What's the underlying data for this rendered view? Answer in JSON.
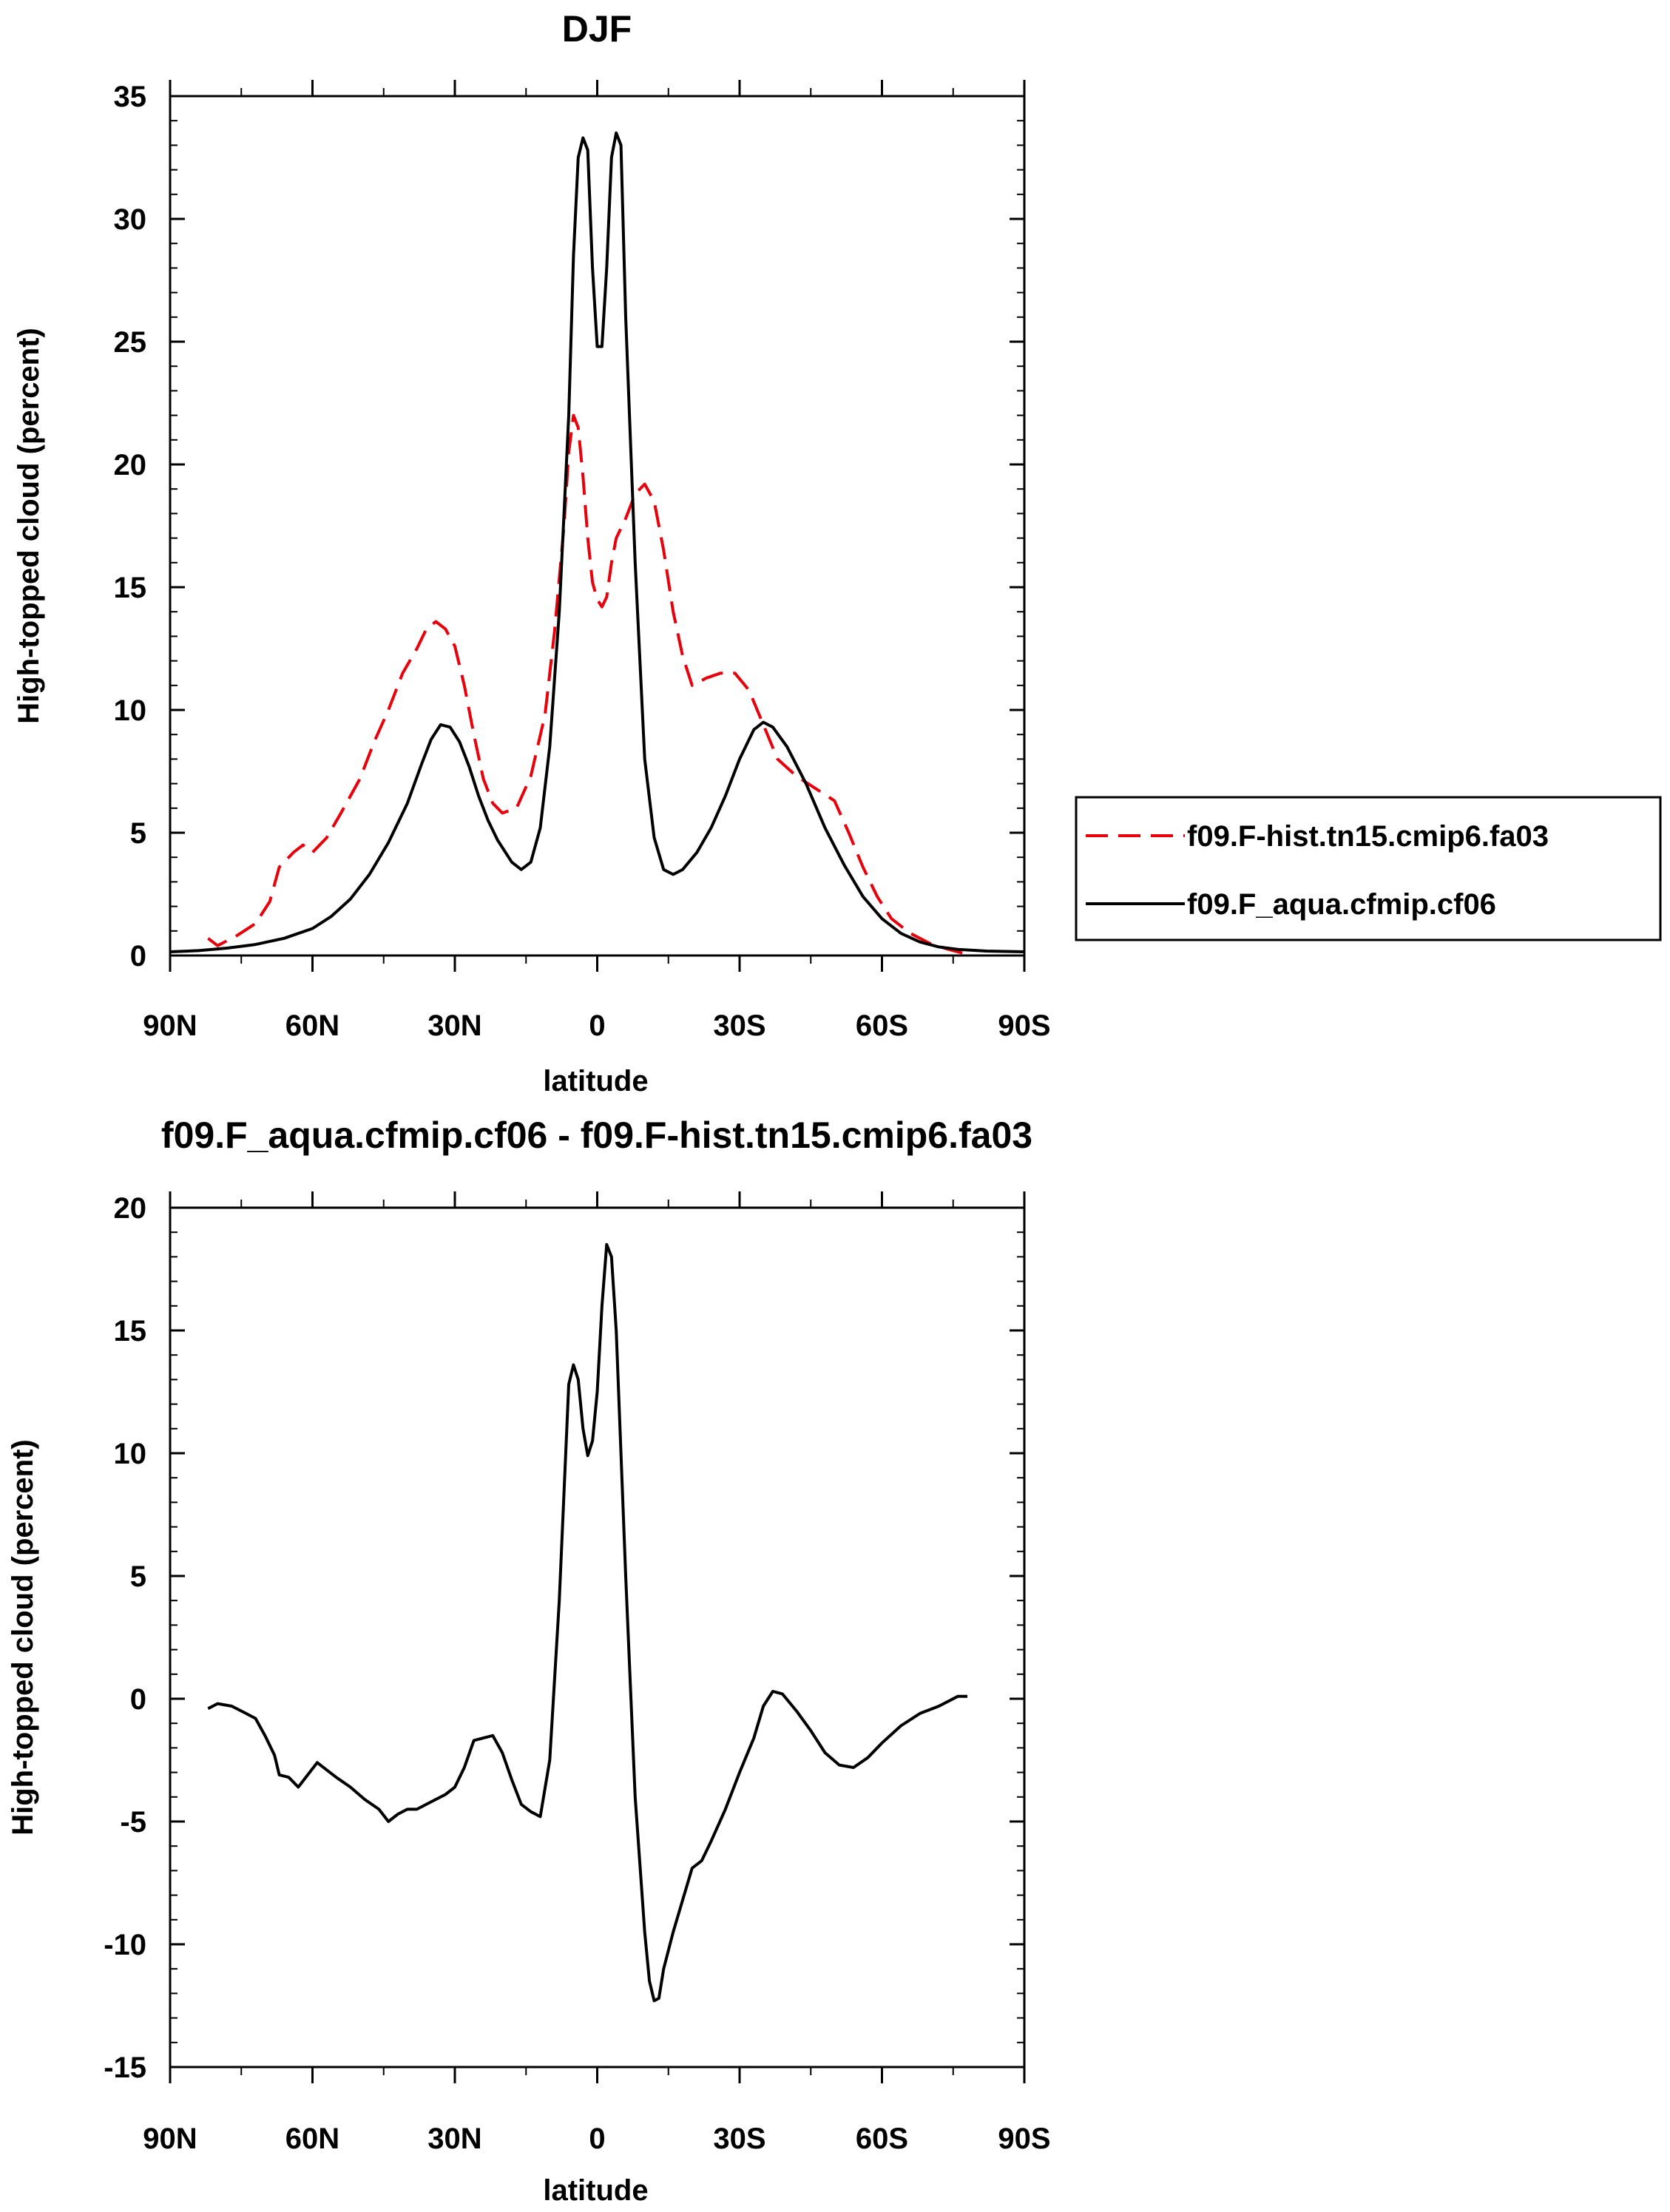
{
  "chart_data": [
    {
      "type": "line",
      "title": "DJF",
      "xlabel": "latitude",
      "ylabel": "High-topped cloud (percent)",
      "xlim": [
        -90,
        90
      ],
      "ylim": [
        0,
        35
      ],
      "y_major_ticks": [
        0,
        5,
        10,
        15,
        20,
        25,
        30,
        35
      ],
      "y_tick_labels": [
        "0",
        "5",
        "10",
        "15",
        "20",
        "25",
        "30",
        "35"
      ],
      "x_major_ticks": [
        -90,
        -60,
        -30,
        0,
        30,
        60,
        90
      ],
      "x_tick_labels": [
        "90N",
        "60N",
        "30N",
        "0",
        "30S",
        "60S",
        "90S"
      ],
      "x_axis_note": "x values are latitude in degrees; negative = N (left), positive = S (right)",
      "legend": {
        "placement": "outside-right",
        "entries": [
          "f09.F-hist.tn15.cmip6.fa03",
          "f09.F_aqua.cfmip.cf06"
        ]
      },
      "series": [
        {
          "name": "f09.F-hist.tn15.cmip6.fa03",
          "color": "#e8000b",
          "dash": "dashed",
          "points": [
            [
              -82,
              0.7
            ],
            [
              -80,
              0.4
            ],
            [
              -76,
              0.8
            ],
            [
              -72,
              1.3
            ],
            [
              -69,
              2.2
            ],
            [
              -67,
              3.6
            ],
            [
              -64,
              4.2
            ],
            [
              -62,
              4.5
            ],
            [
              -60,
              4.2
            ],
            [
              -57,
              4.8
            ],
            [
              -54,
              5.8
            ],
            [
              -50,
              7.2
            ],
            [
              -47,
              8.7
            ],
            [
              -44,
              10.0
            ],
            [
              -41,
              11.5
            ],
            [
              -38,
              12.5
            ],
            [
              -36,
              13.3
            ],
            [
              -34,
              13.6
            ],
            [
              -32,
              13.3
            ],
            [
              -30,
              12.6
            ],
            [
              -28,
              11.0
            ],
            [
              -26,
              9.0
            ],
            [
              -24,
              7.2
            ],
            [
              -22,
              6.2
            ],
            [
              -20,
              5.8
            ],
            [
              -17,
              6.0
            ],
            [
              -14,
              7.3
            ],
            [
              -11,
              9.8
            ],
            [
              -9,
              13.2
            ],
            [
              -7,
              17.5
            ],
            [
              -6,
              20.5
            ],
            [
              -5,
              22.0
            ],
            [
              -4,
              21.5
            ],
            [
              -3,
              19.5
            ],
            [
              -2,
              17.0
            ],
            [
              -1,
              15.2
            ],
            [
              0,
              14.5
            ],
            [
              1,
              14.2
            ],
            [
              2,
              14.6
            ],
            [
              3,
              16.0
            ],
            [
              4,
              17.0
            ],
            [
              6,
              17.8
            ],
            [
              8,
              18.8
            ],
            [
              10,
              19.2
            ],
            [
              12,
              18.5
            ],
            [
              14,
              16.5
            ],
            [
              16,
              14.0
            ],
            [
              18,
              12.2
            ],
            [
              20,
              11.0
            ],
            [
              23,
              11.3
            ],
            [
              26,
              11.5
            ],
            [
              29,
              11.5
            ],
            [
              32,
              10.8
            ],
            [
              35,
              9.4
            ],
            [
              38,
              8.0
            ],
            [
              42,
              7.3
            ],
            [
              46,
              6.8
            ],
            [
              50,
              6.3
            ],
            [
              53,
              5.0
            ],
            [
              56,
              3.6
            ],
            [
              59,
              2.4
            ],
            [
              62,
              1.5
            ],
            [
              66,
              0.9
            ],
            [
              70,
              0.5
            ],
            [
              74,
              0.25
            ],
            [
              77,
              0.1
            ]
          ]
        },
        {
          "name": "f09.F_aqua.cfmip.cf06",
          "color": "#000000",
          "dash": "solid",
          "points": [
            [
              -90,
              0.15
            ],
            [
              -84,
              0.2
            ],
            [
              -78,
              0.3
            ],
            [
              -72,
              0.45
            ],
            [
              -66,
              0.7
            ],
            [
              -60,
              1.1
            ],
            [
              -56,
              1.6
            ],
            [
              -52,
              2.3
            ],
            [
              -48,
              3.3
            ],
            [
              -44,
              4.6
            ],
            [
              -40,
              6.2
            ],
            [
              -37,
              7.8
            ],
            [
              -35,
              8.8
            ],
            [
              -33,
              9.4
            ],
            [
              -31,
              9.3
            ],
            [
              -29,
              8.7
            ],
            [
              -27,
              7.7
            ],
            [
              -25,
              6.5
            ],
            [
              -23,
              5.5
            ],
            [
              -21,
              4.7
            ],
            [
              -18,
              3.8
            ],
            [
              -16,
              3.5
            ],
            [
              -14,
              3.8
            ],
            [
              -12,
              5.2
            ],
            [
              -10,
              8.5
            ],
            [
              -8,
              14.0
            ],
            [
              -6,
              22.0
            ],
            [
              -5,
              28.5
            ],
            [
              -4,
              32.5
            ],
            [
              -3,
              33.3
            ],
            [
              -2,
              32.8
            ],
            [
              -1,
              28.0
            ],
            [
              0,
              24.8
            ],
            [
              1,
              24.8
            ],
            [
              2,
              28.0
            ],
            [
              3,
              32.5
            ],
            [
              4,
              33.5
            ],
            [
              5,
              33.0
            ],
            [
              6,
              26.0
            ],
            [
              8,
              16.0
            ],
            [
              10,
              8.0
            ],
            [
              12,
              4.8
            ],
            [
              14,
              3.5
            ],
            [
              16,
              3.3
            ],
            [
              18,
              3.5
            ],
            [
              21,
              4.2
            ],
            [
              24,
              5.2
            ],
            [
              27,
              6.5
            ],
            [
              30,
              8.0
            ],
            [
              33,
              9.2
            ],
            [
              35,
              9.5
            ],
            [
              37,
              9.3
            ],
            [
              40,
              8.5
            ],
            [
              44,
              7.0
            ],
            [
              48,
              5.2
            ],
            [
              52,
              3.7
            ],
            [
              56,
              2.4
            ],
            [
              60,
              1.5
            ],
            [
              64,
              0.9
            ],
            [
              68,
              0.55
            ],
            [
              72,
              0.35
            ],
            [
              76,
              0.25
            ],
            [
              82,
              0.18
            ],
            [
              90,
              0.15
            ]
          ]
        }
      ]
    },
    {
      "type": "line",
      "title": "f09.F_aqua.cfmip.cf06 - f09.F-hist.tn15.cmip6.fa03",
      "xlabel": "latitude",
      "ylabel": "High-topped cloud (percent)",
      "xlim": [
        -90,
        90
      ],
      "ylim": [
        -15,
        20
      ],
      "y_major_ticks": [
        -15,
        -10,
        -5,
        0,
        5,
        10,
        15,
        20
      ],
      "y_tick_labels": [
        "-15",
        "-10",
        "-5",
        "0",
        "5",
        "10",
        "15",
        "20"
      ],
      "x_major_ticks": [
        -90,
        -60,
        -30,
        0,
        30,
        60,
        90
      ],
      "x_tick_labels": [
        "90N",
        "60N",
        "30N",
        "0",
        "30S",
        "60S",
        "90S"
      ],
      "series": [
        {
          "color": "#000000",
          "dash": "solid",
          "points": [
            [
              -82,
              -0.4
            ],
            [
              -80,
              -0.2
            ],
            [
              -77,
              -0.3
            ],
            [
              -74,
              -0.6
            ],
            [
              -72,
              -0.8
            ],
            [
              -70,
              -1.5
            ],
            [
              -68,
              -2.3
            ],
            [
              -67,
              -3.1
            ],
            [
              -65,
              -3.2
            ],
            [
              -63,
              -3.6
            ],
            [
              -61,
              -3.1
            ],
            [
              -59,
              -2.6
            ],
            [
              -57,
              -2.9
            ],
            [
              -55,
              -3.2
            ],
            [
              -52,
              -3.6
            ],
            [
              -49,
              -4.1
            ],
            [
              -46,
              -4.5
            ],
            [
              -44,
              -5.0
            ],
            [
              -42,
              -4.7
            ],
            [
              -40,
              -4.5
            ],
            [
              -38,
              -4.5
            ],
            [
              -35,
              -4.2
            ],
            [
              -32,
              -3.9
            ],
            [
              -30,
              -3.6
            ],
            [
              -28,
              -2.8
            ],
            [
              -26,
              -1.7
            ],
            [
              -24,
              -1.6
            ],
            [
              -22,
              -1.5
            ],
            [
              -20,
              -2.2
            ],
            [
              -18,
              -3.3
            ],
            [
              -16,
              -4.3
            ],
            [
              -14,
              -4.6
            ],
            [
              -12,
              -4.8
            ],
            [
              -10,
              -2.5
            ],
            [
              -8,
              4.0
            ],
            [
              -6,
              12.8
            ],
            [
              -5,
              13.6
            ],
            [
              -4,
              13.0
            ],
            [
              -3,
              11.0
            ],
            [
              -2,
              9.9
            ],
            [
              -1,
              10.5
            ],
            [
              0,
              12.5
            ],
            [
              1,
              16.0
            ],
            [
              2,
              18.5
            ],
            [
              3,
              18.0
            ],
            [
              4,
              15.0
            ],
            [
              6,
              5.0
            ],
            [
              8,
              -4.0
            ],
            [
              10,
              -9.5
            ],
            [
              11,
              -11.5
            ],
            [
              12,
              -12.3
            ],
            [
              13,
              -12.2
            ],
            [
              14,
              -11.0
            ],
            [
              16,
              -9.5
            ],
            [
              18,
              -8.2
            ],
            [
              20,
              -6.9
            ],
            [
              22,
              -6.6
            ],
            [
              24,
              -5.8
            ],
            [
              27,
              -4.5
            ],
            [
              30,
              -3.0
            ],
            [
              33,
              -1.6
            ],
            [
              35,
              -0.3
            ],
            [
              37,
              0.3
            ],
            [
              39,
              0.2
            ],
            [
              42,
              -0.5
            ],
            [
              45,
              -1.3
            ],
            [
              48,
              -2.2
            ],
            [
              51,
              -2.7
            ],
            [
              54,
              -2.8
            ],
            [
              57,
              -2.4
            ],
            [
              60,
              -1.8
            ],
            [
              64,
              -1.1
            ],
            [
              68,
              -0.6
            ],
            [
              72,
              -0.3
            ],
            [
              76,
              0.1
            ],
            [
              78,
              0.1
            ]
          ]
        }
      ]
    }
  ]
}
